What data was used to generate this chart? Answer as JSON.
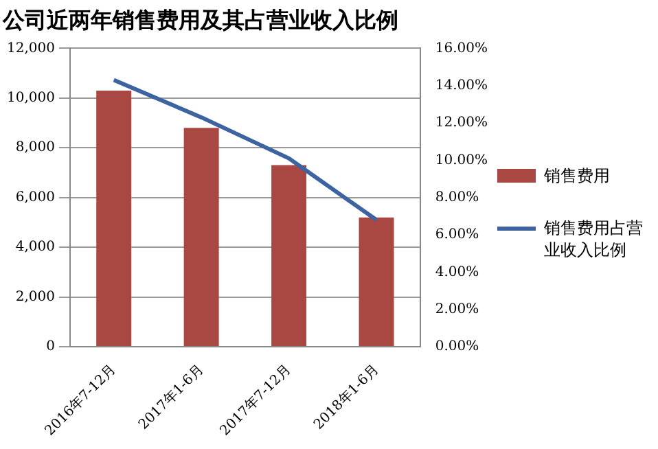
{
  "chart_data": {
    "type": "bar",
    "title": "公司近两年销售费用及其占营业收入比例",
    "categories": [
      "2016年7-12月",
      "2017年1-6月",
      "2017年7-12月",
      "2018年1-6月"
    ],
    "series": [
      {
        "name": "销售费用",
        "color": "#a94843",
        "values": [
          10300,
          8800,
          7300,
          5200
        ]
      },
      {
        "name": "销售费用占营业收入比例",
        "type": "line",
        "axis": "y2",
        "color": "#3d64a0",
        "values": [
          14.3,
          12.3,
          10.1,
          6.8
        ]
      }
    ],
    "ylim": [
      0,
      12000
    ],
    "yticks": [
      0,
      {
        "value": 2000,
        "label": "2,000"
      },
      {
        "value": 4000,
        "label": "4,000"
      },
      {
        "value": 6000,
        "label": "6,000"
      },
      {
        "value": 8000,
        "label": "8,000"
      },
      {
        "value": 10000,
        "label": "10,000"
      },
      {
        "value": 12000,
        "label": "12,000"
      }
    ],
    "y2lim": [
      0,
      16
    ],
    "y2ticks": [
      {
        "value": 0,
        "label": "0.00%"
      },
      {
        "value": 2,
        "label": "2.00%"
      },
      {
        "value": 4,
        "label": "4.00%"
      },
      {
        "value": 6,
        "label": "6.00%"
      },
      {
        "value": 8,
        "label": "8.00%"
      },
      {
        "value": 10,
        "label": "10.00%"
      },
      {
        "value": 12,
        "label": "12.00%"
      },
      {
        "value": 14,
        "label": "14.00%"
      },
      {
        "value": 16,
        "label": "16.00%"
      }
    ],
    "grid": "y",
    "legend": "right",
    "marker": "none"
  }
}
